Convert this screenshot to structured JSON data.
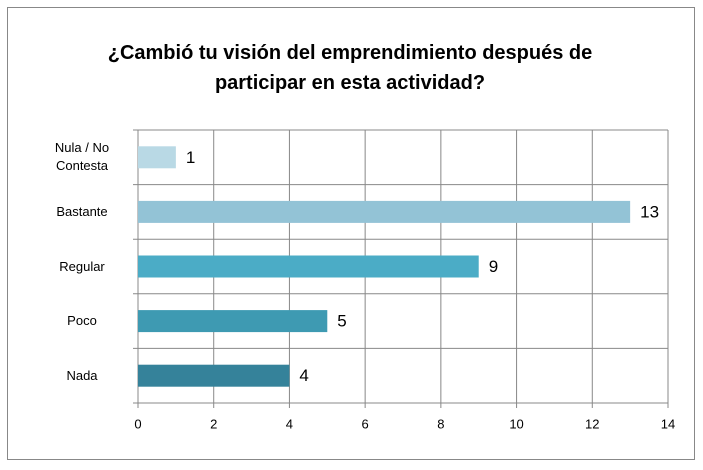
{
  "chart_data": {
    "type": "barh",
    "title": "¿Cambió tu visión del emprendimiento después de participar en esta actividad?",
    "categories": [
      "Nula / No Contesta",
      "Bastante",
      "Regular",
      "Poco",
      "Nada"
    ],
    "values": [
      1,
      13,
      9,
      5,
      4
    ],
    "colors": [
      "#b9d9e5",
      "#93c3d6",
      "#4bacc6",
      "#3e9ab2",
      "#35829a"
    ],
    "xlim": [
      0,
      14
    ],
    "xticks": [
      0,
      2,
      4,
      6,
      8,
      10,
      12,
      14
    ],
    "grid": true
  }
}
